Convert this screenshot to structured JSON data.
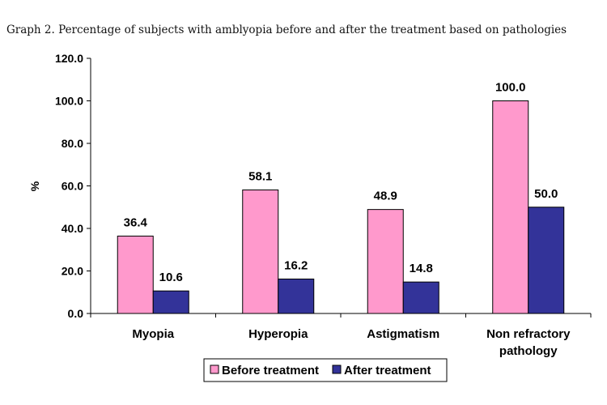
{
  "chart_data": {
    "type": "bar",
    "title": "Graph 2. Percentage of subjects with amblyopia before and after the treatment based on pathologies",
    "ylabel": "%",
    "xlabel": "",
    "ylim": [
      0,
      120
    ],
    "yticks": [
      "0.0",
      "20.0",
      "40.0",
      "60.0",
      "80.0",
      "100.0",
      "120.0"
    ],
    "categories": [
      [
        "Myopia"
      ],
      [
        "Hyperopia"
      ],
      [
        "Astigmatism"
      ],
      [
        "Non refractory",
        "pathology"
      ]
    ],
    "series": [
      {
        "name": "Before treatment",
        "color": "#ff99cc",
        "values": [
          36.4,
          58.1,
          48.9,
          100.0
        ],
        "labels": [
          "36.4",
          "58.1",
          "48.9",
          "100.0"
        ]
      },
      {
        "name": "After treatment",
        "color": "#333399",
        "values": [
          10.6,
          16.2,
          14.8,
          50.0
        ],
        "labels": [
          "10.6",
          "16.2",
          "14.8",
          "50.0"
        ]
      }
    ],
    "legend": "bottom",
    "grid": false
  }
}
